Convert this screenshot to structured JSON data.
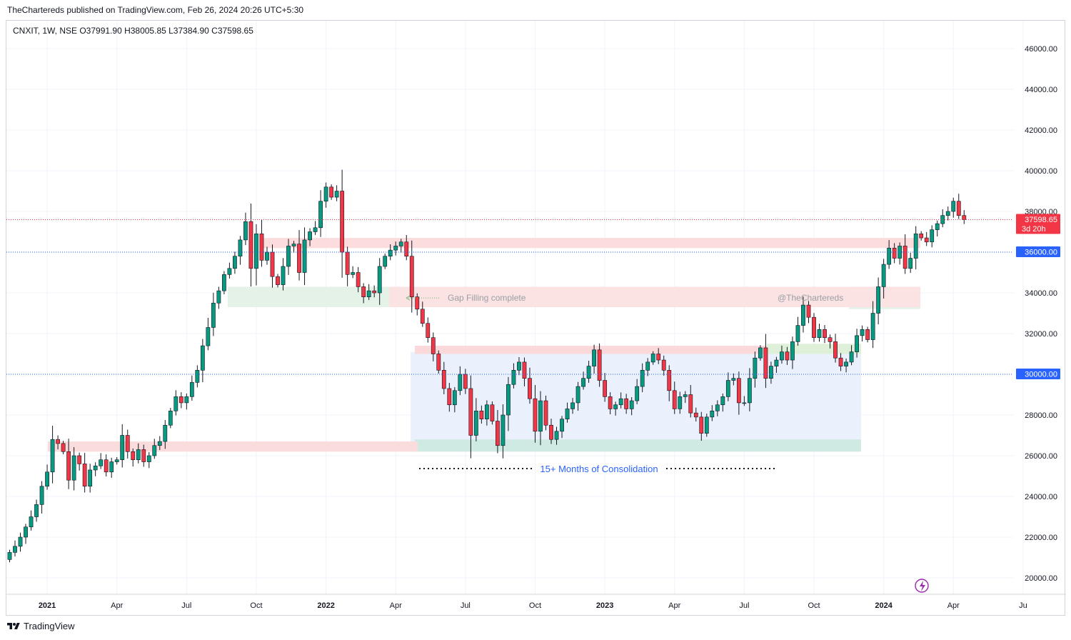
{
  "header": {
    "published_text": "TheChartereds published on TradingView.com, Feb 26, 2024 20:26 UTC+5:30"
  },
  "footer": {
    "brand": "TradingView"
  },
  "chart_data": {
    "type": "candlestick",
    "symbol_line": "CNXIT, 1W, NSE  O37991.90  H38005.85  L37384.90  C37598.65",
    "ylim": [
      19000,
      47000
    ],
    "y_ticks": [
      {
        "value": 20000,
        "label": "20000.00"
      },
      {
        "value": 22000,
        "label": "22000.00"
      },
      {
        "value": 24000,
        "label": "24000.00"
      },
      {
        "value": 26000,
        "label": "26000.00"
      },
      {
        "value": 28000,
        "label": "28000.00"
      },
      {
        "value": 30000,
        "label": "30000.00"
      },
      {
        "value": 32000,
        "label": "32000.00"
      },
      {
        "value": 34000,
        "label": "34000.00"
      },
      {
        "value": 36000,
        "label": "36000.00"
      },
      {
        "value": 38000,
        "label": "38000.00"
      },
      {
        "value": 40000,
        "label": "40000.00"
      },
      {
        "value": 42000,
        "label": "42000.00"
      },
      {
        "value": 44000,
        "label": "44000.00"
      },
      {
        "value": 46000,
        "label": "46000.00"
      }
    ],
    "x_ticks": [
      {
        "week": 7,
        "label": "2021",
        "bold": true
      },
      {
        "week": 20,
        "label": "Apr"
      },
      {
        "week": 33,
        "label": "Jul"
      },
      {
        "week": 46,
        "label": "Oct"
      },
      {
        "week": 59,
        "label": "2022",
        "bold": true
      },
      {
        "week": 72,
        "label": "Apr"
      },
      {
        "week": 85,
        "label": "Jul"
      },
      {
        "week": 98,
        "label": "Oct"
      },
      {
        "week": 111,
        "label": "2023",
        "bold": true
      },
      {
        "week": 124,
        "label": "Apr"
      },
      {
        "week": 137,
        "label": "Jul"
      },
      {
        "week": 150,
        "label": "Oct"
      },
      {
        "week": 163,
        "label": "2024",
        "bold": true
      },
      {
        "week": 176,
        "label": "Apr"
      },
      {
        "week": 189,
        "label": "Ju"
      }
    ],
    "closes": [
      21250,
      21550,
      22000,
      22500,
      23000,
      23600,
      24500,
      25200,
      26800,
      26600,
      26200,
      24800,
      26000,
      25600,
      24500,
      25300,
      25500,
      25800,
      25200,
      25700,
      25800,
      27000,
      26200,
      25800,
      26300,
      25700,
      26000,
      26500,
      26700,
      27500,
      28200,
      28900,
      28600,
      28900,
      29600,
      30200,
      31400,
      32300,
      33500,
      34100,
      34900,
      35200,
      35800,
      36600,
      37500,
      35200,
      36900,
      35600,
      36000,
      34800,
      34400,
      35300,
      36300,
      36400,
      35000,
      36600,
      37000,
      37200,
      38500,
      39200,
      38700,
      39000,
      36000,
      34900,
      35000,
      34300,
      33800,
      34100,
      34000,
      35300,
      35800,
      36100,
      36300,
      36500,
      35800,
      33800,
      33200,
      32500,
      31800,
      31000,
      30200,
      29300,
      28500,
      29200,
      30000,
      29300,
      27000,
      28200,
      27800,
      28500,
      27700,
      26500,
      28000,
      29500,
      30200,
      30600,
      29800,
      28800,
      27200,
      28700,
      27500,
      26800,
      27200,
      27800,
      28300,
      28600,
      29400,
      29800,
      30400,
      31200,
      29700,
      28900,
      28300,
      28500,
      28800,
      28300,
      28700,
      29400,
      30200,
      30600,
      31000,
      30700,
      30200,
      29200,
      28300,
      28900,
      29000,
      28100,
      27900,
      27100,
      27900,
      28200,
      28500,
      28900,
      29700,
      29800,
      28600,
      28600,
      29800,
      30800,
      31300,
      29800,
      30400,
      30700,
      31100,
      30700,
      31600,
      32400,
      33400,
      32800,
      31800,
      32200,
      31800,
      31600,
      30800,
      30400,
      30600,
      31100,
      31900,
      32200,
      31700,
      33000,
      34300,
      35400,
      36200,
      35700,
      36300,
      35200,
      35700,
      36900,
      36700,
      36500,
      37100,
      37400,
      37800,
      38000,
      38500,
      37800,
      37600
    ],
    "annotations": {
      "gap_label": "Gap Filling complete",
      "watermark": "@TheChartereds",
      "consolidation_label": "15+ Months of Consolidation"
    },
    "price_labels": [
      {
        "value": 37598.65,
        "text": "37598.65",
        "sub": "3d 20h",
        "color": "#f23645"
      },
      {
        "value": 36000,
        "text": "36000.00",
        "color": "#2962ff"
      },
      {
        "value": 30000,
        "text": "30000.00",
        "color": "#2962ff"
      }
    ],
    "colors": {
      "up": "#089981",
      "down": "#f23645",
      "grid": "#f0f3fa",
      "hline": "#2962ff"
    }
  }
}
